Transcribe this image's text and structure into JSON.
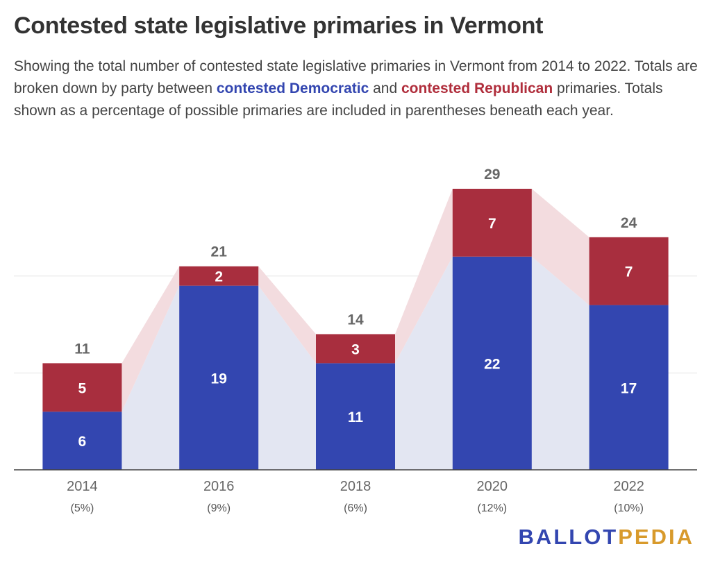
{
  "title": "Contested state legislative primaries in Vermont",
  "subtitle": {
    "part1": "Showing the total number of contested state legislative primaries in Vermont from 2014 to 2022. Totals are broken down by party between ",
    "dem_link": "contested Democratic",
    "part2": " and ",
    "rep_link": "contested Republican",
    "part3": " primaries. Totals shown as a percentage of possible primaries are included in parentheses beneath each year."
  },
  "logo": {
    "part1": "BALLOT",
    "part2": "PEDIA"
  },
  "colors": {
    "democratic": "#3346b0",
    "republican": "#a82e3e",
    "dem_area": "#e3e6f2",
    "rep_area": "#f3dcdf",
    "grid": "#e2e2e2",
    "axis": "#444444"
  },
  "chart_data": {
    "type": "bar",
    "stacked": true,
    "categories": [
      "2014",
      "2016",
      "2018",
      "2020",
      "2022"
    ],
    "sublabels": [
      "(5%)",
      "(9%)",
      "(6%)",
      "(12%)",
      "(10%)"
    ],
    "series": [
      {
        "name": "contested Democratic",
        "values": [
          6,
          19,
          11,
          22,
          17
        ]
      },
      {
        "name": "contested Republican",
        "values": [
          5,
          2,
          3,
          7,
          7
        ]
      }
    ],
    "totals": [
      11,
      21,
      14,
      29,
      24
    ],
    "ylim": [
      0,
      29
    ],
    "grid": true
  }
}
